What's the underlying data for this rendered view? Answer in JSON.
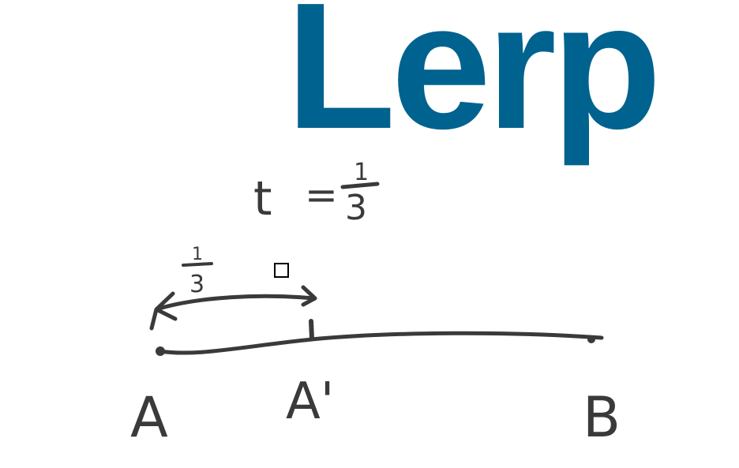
{
  "title": "Lerp",
  "equation": {
    "variable": "t",
    "equals": "=",
    "numerator": "1",
    "denominator": "3"
  },
  "arrow_fraction": {
    "numerator": "1",
    "denominator": "3"
  },
  "point_labels": {
    "start": "A",
    "mid": "A'",
    "end": "B"
  },
  "colors": {
    "title": "#00628f",
    "ink": "#3a3a3a",
    "background": "#ffffff"
  }
}
